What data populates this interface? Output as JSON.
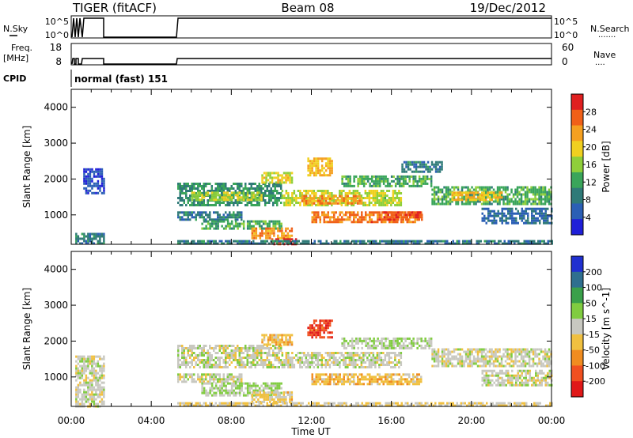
{
  "header": {
    "radar": "TIGER (fitACF)",
    "beam": "Beam 08",
    "date": "19/Dec/2012"
  },
  "nsky_panel": {
    "left_label": "N.Sky",
    "right_label": "N.Search",
    "left_ticks": [
      "10^5",
      "10^0"
    ],
    "right_ticks": [
      "10^5",
      "10^0"
    ],
    "right_marker": "·······"
  },
  "freq_panel": {
    "left_label_1": "Freq.",
    "left_label_2": "[MHz]",
    "right_label": "Nave",
    "left_ticks": [
      "18",
      "8"
    ],
    "right_ticks": [
      "60",
      "0"
    ],
    "right_marker": "····"
  },
  "cpid": {
    "label": "CPID",
    "text": "normal (fast) 151"
  },
  "x_axis": {
    "label": "Time UT",
    "ticks": [
      "00:00",
      "04:00",
      "08:00",
      "12:00",
      "16:00",
      "20:00",
      "00:00"
    ]
  },
  "colors": {
    "power_scale": [
      "#1f1fd8",
      "#2b5fb5",
      "#2f7a78",
      "#3aa55a",
      "#8fcf3a",
      "#f0d020",
      "#f5a020",
      "#f06018",
      "#e02020"
    ],
    "velocity_scale": [
      "#2030d0",
      "#2f6f8f",
      "#3aa04a",
      "#80cc40",
      "#c8c8c0",
      "#f0c040",
      "#f08c20",
      "#f05020",
      "#e01818"
    ]
  },
  "chart_data": [
    {
      "type": "heatmap",
      "title": "Power",
      "ylabel": "Slant Range [km]",
      "xlabel": "",
      "x_range_hours": [
        0,
        24
      ],
      "ylim": [
        180,
        4500
      ],
      "yticks": [
        1000,
        2000,
        3000,
        4000
      ],
      "colorbar": {
        "label": "Power [dB]",
        "ticks": [
          "4",
          "8",
          "12",
          "16",
          "20",
          "24",
          "28"
        ],
        "range": [
          0,
          30
        ]
      },
      "regions": [
        {
          "t0": 0.2,
          "t1": 1.6,
          "r0": 200,
          "r1": 500,
          "value": 8
        },
        {
          "t0": 0.6,
          "t1": 1.6,
          "r0": 1600,
          "r1": 2300,
          "value": 4
        },
        {
          "t0": 5.3,
          "t1": 10.5,
          "r0": 1300,
          "r1": 1900,
          "value": 10
        },
        {
          "t0": 6.0,
          "t1": 9.5,
          "r0": 1450,
          "r1": 1650,
          "value": 16
        },
        {
          "t0": 5.3,
          "t1": 8.5,
          "r0": 850,
          "r1": 1100,
          "value": 8
        },
        {
          "t0": 6.5,
          "t1": 10.5,
          "r0": 600,
          "r1": 850,
          "value": 12
        },
        {
          "t0": 9.0,
          "t1": 11.0,
          "r0": 350,
          "r1": 650,
          "value": 22
        },
        {
          "t0": 10.0,
          "t1": 11.2,
          "r0": 200,
          "r1": 350,
          "value": 28
        },
        {
          "t0": 10.5,
          "t1": 16.5,
          "r0": 1250,
          "r1": 1700,
          "value": 16
        },
        {
          "t0": 11.5,
          "t1": 14.5,
          "r0": 1350,
          "r1": 1550,
          "value": 22
        },
        {
          "t0": 12.0,
          "t1": 17.5,
          "r0": 800,
          "r1": 1100,
          "value": 24
        },
        {
          "t0": 15.5,
          "t1": 17.5,
          "r0": 900,
          "r1": 1100,
          "value": 26
        },
        {
          "t0": 11.8,
          "t1": 13.0,
          "r0": 2100,
          "r1": 2600,
          "value": 20
        },
        {
          "t0": 9.5,
          "t1": 11.0,
          "r0": 1900,
          "r1": 2200,
          "value": 18
        },
        {
          "t0": 13.5,
          "t1": 18.0,
          "r0": 1800,
          "r1": 2100,
          "value": 12
        },
        {
          "t0": 16.5,
          "t1": 18.5,
          "r0": 2200,
          "r1": 2500,
          "value": 8
        },
        {
          "t0": 18.0,
          "t1": 24.0,
          "r0": 1300,
          "r1": 1800,
          "value": 12
        },
        {
          "t0": 19.0,
          "t1": 21.5,
          "r0": 1450,
          "r1": 1650,
          "value": 20
        },
        {
          "t0": 20.5,
          "t1": 24.0,
          "r0": 800,
          "r1": 1200,
          "value": 6
        },
        {
          "t0": 5.3,
          "t1": 24.0,
          "r0": 180,
          "r1": 300,
          "value": 8
        }
      ]
    },
    {
      "type": "heatmap",
      "title": "Velocity",
      "ylabel": "Slant Range [km]",
      "xlabel": "Time UT",
      "x_range_hours": [
        0,
        24
      ],
      "ylim": [
        180,
        4500
      ],
      "yticks": [
        1000,
        2000,
        3000,
        4000
      ],
      "colorbar": {
        "label": "Velocity [m s^-1]",
        "ticks": [
          "200",
          "100",
          "50",
          "15",
          "-15",
          "-50",
          "-100",
          "-200"
        ],
        "range": [
          -250,
          250
        ]
      },
      "regions": [
        {
          "t0": 0.2,
          "t1": 1.6,
          "r0": 200,
          "r1": 1600,
          "value": 0
        },
        {
          "t0": 5.3,
          "t1": 10.5,
          "r0": 1300,
          "r1": 1900,
          "value": 0
        },
        {
          "t0": 5.3,
          "t1": 8.5,
          "r0": 850,
          "r1": 1100,
          "value": 0
        },
        {
          "t0": 6.5,
          "t1": 10.5,
          "r0": 500,
          "r1": 850,
          "value": 30
        },
        {
          "t0": 9.0,
          "t1": 11.0,
          "r0": 300,
          "r1": 600,
          "value": -40
        },
        {
          "t0": 10.5,
          "t1": 16.5,
          "r0": 1250,
          "r1": 1700,
          "value": 0
        },
        {
          "t0": 12.0,
          "t1": 17.5,
          "r0": 800,
          "r1": 1100,
          "value": -60
        },
        {
          "t0": 11.8,
          "t1": 13.0,
          "r0": 2100,
          "r1": 2600,
          "value": -180
        },
        {
          "t0": 9.5,
          "t1": 11.0,
          "r0": 1900,
          "r1": 2200,
          "value": -60
        },
        {
          "t0": 13.5,
          "t1": 18.0,
          "r0": 1800,
          "r1": 2100,
          "value": 20
        },
        {
          "t0": 18.0,
          "t1": 24.0,
          "r0": 1300,
          "r1": 1800,
          "value": 0
        },
        {
          "t0": 20.5,
          "t1": 24.0,
          "r0": 800,
          "r1": 1200,
          "value": 0
        },
        {
          "t0": 5.3,
          "t1": 24.0,
          "r0": 180,
          "r1": 300,
          "value": -30
        }
      ]
    }
  ]
}
